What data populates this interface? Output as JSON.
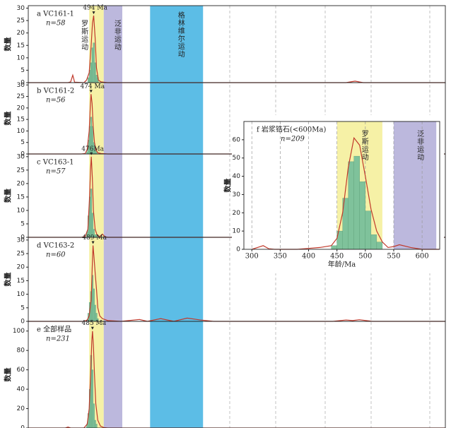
{
  "bands": [
    {
      "label": "罗斯运动",
      "range": [
        460,
        570
      ],
      "color": "#f6f1a6"
    },
    {
      "label": "泛非运动",
      "range": [
        570,
        710
      ],
      "color": "#bcb8dd"
    },
    {
      "label": "格林维尔运动",
      "range": [
        920,
        1320
      ],
      "color": "#5cbde6"
    }
  ],
  "chart_data": [
    {
      "type": "histogram",
      "title": "a VC161-1",
      "n_label": "n=58",
      "ylabel": "数量",
      "xlim": [
        0,
        3150
      ],
      "ylim": [
        0,
        31
      ],
      "yticks": [
        0,
        5,
        10,
        15,
        20,
        25,
        30
      ],
      "bins": [
        450,
        460,
        470,
        480,
        490,
        500,
        510,
        520,
        530
      ],
      "counts": [
        2,
        5,
        8,
        14,
        16,
        8,
        3,
        2
      ],
      "bar_color": "#7fc29b",
      "curve": {
        "x": [
          0,
          300,
          320,
          336,
          350,
          420,
          440,
          460,
          475,
          485,
          494,
          505,
          515,
          530,
          550,
          600,
          1000,
          2400,
          2468,
          2530,
          3150
        ],
        "values": [
          0,
          0,
          0.3,
          3,
          0.2,
          0,
          1,
          4,
          15,
          24,
          27,
          18,
          6,
          1,
          0.3,
          0,
          0,
          0,
          0.6,
          0,
          0
        ],
        "color": "#c0392b"
      },
      "peak": {
        "value": 494,
        "label": "494 Ma"
      }
    },
    {
      "type": "histogram",
      "title": "b VC161-2",
      "n_label": "n=56",
      "ylabel": "数量",
      "xlim": [
        0,
        3150
      ],
      "ylim": [
        0,
        31
      ],
      "yticks": [
        0,
        5,
        10,
        15,
        20,
        25,
        30
      ],
      "bins": [
        440,
        450,
        460,
        470,
        480,
        490,
        500,
        510,
        520
      ],
      "counts": [
        1,
        6,
        12,
        16,
        12,
        5,
        3,
        1
      ],
      "bar_color": "#7fc29b",
      "curve": {
        "x": [
          0,
          400,
          430,
          445,
          460,
          468,
          474,
          482,
          490,
          500,
          510,
          525,
          550,
          600,
          3150
        ],
        "values": [
          0,
          0,
          0.2,
          2,
          10,
          20,
          26,
          22,
          12,
          5,
          2,
          0.5,
          0.2,
          0,
          0
        ],
        "color": "#c0392b"
      },
      "peak": {
        "value": 474,
        "label": "474 Ma"
      }
    },
    {
      "type": "histogram",
      "title": "c VC163-1",
      "n_label": "n=57",
      "ylabel": "数量",
      "xlim": [
        0,
        3150
      ],
      "ylim": [
        0,
        31
      ],
      "yticks": [
        0,
        5,
        10,
        15,
        20,
        25,
        30
      ],
      "bins": [
        440,
        450,
        460,
        470,
        480,
        490,
        500,
        510,
        520
      ],
      "counts": [
        2,
        8,
        15,
        18,
        9,
        3,
        1,
        1
      ],
      "bar_color": "#7fc29b",
      "curve": {
        "x": [
          0,
          400,
          430,
          450,
          462,
          470,
          476,
          484,
          492,
          505,
          520,
          540,
          560,
          580,
          600,
          3150
        ],
        "values": [
          0,
          0,
          0.3,
          3,
          14,
          25,
          30,
          22,
          10,
          3,
          0.8,
          0.3,
          1.2,
          0.2,
          0,
          0
        ],
        "color": "#c0392b"
      },
      "peak": {
        "value": 476,
        "label": "476Ma"
      }
    },
    {
      "type": "histogram",
      "title": "d VC163-2",
      "n_label": "n=60",
      "ylabel": "数量",
      "xlim": [
        0,
        3150
      ],
      "ylim": [
        0,
        31
      ],
      "yticks": [
        0,
        5,
        10,
        15,
        20,
        25,
        30
      ],
      "bins": [
        450,
        460,
        470,
        480,
        490,
        500,
        510,
        520,
        530
      ],
      "counts": [
        3,
        7,
        11,
        17,
        12,
        6,
        3,
        1
      ],
      "bar_color": "#7fc29b",
      "curve": {
        "x": [
          0,
          420,
          445,
          460,
          475,
          483,
          489,
          496,
          505,
          515,
          525,
          540,
          560,
          600,
          700,
          840,
          900,
          1000,
          1100,
          1200,
          1300,
          1400,
          2300,
          2400,
          2450,
          2500,
          2600,
          3150
        ],
        "values": [
          0,
          0,
          0.5,
          2,
          8,
          20,
          28,
          24,
          18,
          12,
          5,
          2,
          1,
          0.3,
          0,
          0.7,
          0,
          1,
          0,
          1.2,
          0.5,
          0,
          0,
          0.5,
          0.3,
          0.6,
          0,
          0
        ],
        "color": "#c0392b"
      },
      "peak": {
        "value": 489,
        "label": "489 Ma"
      }
    },
    {
      "type": "histogram",
      "title": "e 全部样品",
      "n_label": "n=231",
      "ylabel": "数量",
      "xlim": [
        0,
        3150
      ],
      "ylim": [
        0,
        110
      ],
      "yticks": [
        0,
        20,
        40,
        60,
        80,
        100
      ],
      "bins": [
        440,
        450,
        460,
        470,
        480,
        490,
        500,
        510,
        520
      ],
      "counts": [
        4,
        15,
        40,
        75,
        60,
        25,
        8,
        4
      ],
      "bar_color": "#7fc29b",
      "curve": {
        "x": [
          0,
          280,
          300,
          320,
          340,
          420,
          445,
          460,
          472,
          480,
          485,
          492,
          500,
          510,
          525,
          545,
          570,
          600,
          3150
        ],
        "values": [
          0,
          0,
          1,
          0,
          0,
          0,
          4,
          20,
          60,
          90,
          100,
          85,
          55,
          25,
          8,
          2,
          0.5,
          0,
          0
        ],
        "color": "#c0392b"
      },
      "peak": {
        "value": 485,
        "label": "485 Ma"
      }
    },
    {
      "type": "histogram",
      "title": "f 岩浆锆石(<600Ma)",
      "n_label": "n=209",
      "ylabel": "数量",
      "xlabel": "年龄/Ma",
      "xlim": [
        286,
        631
      ],
      "ylim": [
        0,
        70
      ],
      "xticks": [
        300,
        350,
        400,
        450,
        500,
        550,
        600
      ],
      "yticks": [
        0,
        10,
        20,
        30,
        40,
        50,
        60
      ],
      "bands": [
        {
          "label": "罗斯运动",
          "range": [
            450,
            530
          ],
          "color": "#f6f1a6"
        },
        {
          "label": "泛非运动",
          "range": [
            550,
            625
          ],
          "color": "#bcb8dd"
        }
      ],
      "bins": [
        440,
        450,
        460,
        470,
        480,
        490,
        500,
        510,
        520,
        530
      ],
      "counts": [
        2,
        10,
        28,
        48,
        51,
        37,
        21,
        8,
        4
      ],
      "bar_color": "#7fc29b",
      "curve": {
        "x": [
          300,
          310,
          320,
          330,
          340,
          380,
          400,
          420,
          440,
          450,
          460,
          470,
          480,
          490,
          500,
          510,
          520,
          530,
          540,
          550,
          560,
          580,
          600,
          630
        ],
        "values": [
          0,
          1,
          2,
          0.3,
          0,
          0,
          0.5,
          1,
          2,
          6,
          20,
          45,
          61,
          57,
          40,
          22,
          10,
          4,
          1,
          1.5,
          2.5,
          1,
          0,
          0
        ],
        "color": "#c0392b"
      }
    }
  ]
}
